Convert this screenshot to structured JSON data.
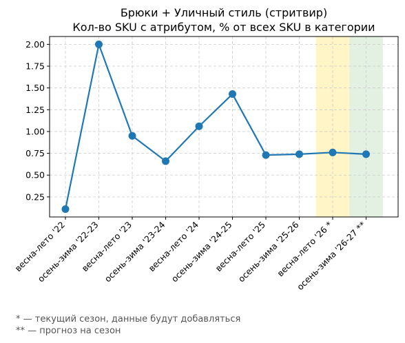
{
  "chart_data": {
    "type": "line",
    "title": "Брюки + Уличный стиль (стритвир)",
    "subtitle": "Кол-во SKU с атрибутом, % от всех SKU в категории",
    "xlabel": "",
    "ylabel": "",
    "categories": [
      "весна-лето '22",
      "осень-зима '22-23",
      "весна-лето '23",
      "осень-зима '23-24",
      "весна-лето '24",
      "осень-зима '24-25",
      "весна-лето '25",
      "осень-зима '25-26",
      "весна-лето '26 *",
      "осень-зима '26-27 **"
    ],
    "values": [
      0.11,
      2.0,
      0.95,
      0.66,
      1.06,
      1.43,
      0.73,
      0.74,
      0.76,
      0.74
    ],
    "ylim": [
      0.02,
      2.09
    ],
    "yticks": [
      0.25,
      0.5,
      0.75,
      1.0,
      1.25,
      1.5,
      1.75,
      2.0
    ],
    "ytick_labels": [
      "0.25",
      "0.50",
      "0.75",
      "1.00",
      "1.25",
      "1.50",
      "1.75",
      "2.00"
    ],
    "grid": true,
    "line_color": "#1f77b4",
    "highlight_bands": [
      {
        "category_index": 8,
        "color": "#fff2b3"
      },
      {
        "category_index": 9,
        "color": "#d8ecd8"
      }
    ]
  },
  "footnotes": {
    "current_season": "* — текущий сезон, данные будут добавляться",
    "forecast": "** — прогноз на сезон"
  }
}
